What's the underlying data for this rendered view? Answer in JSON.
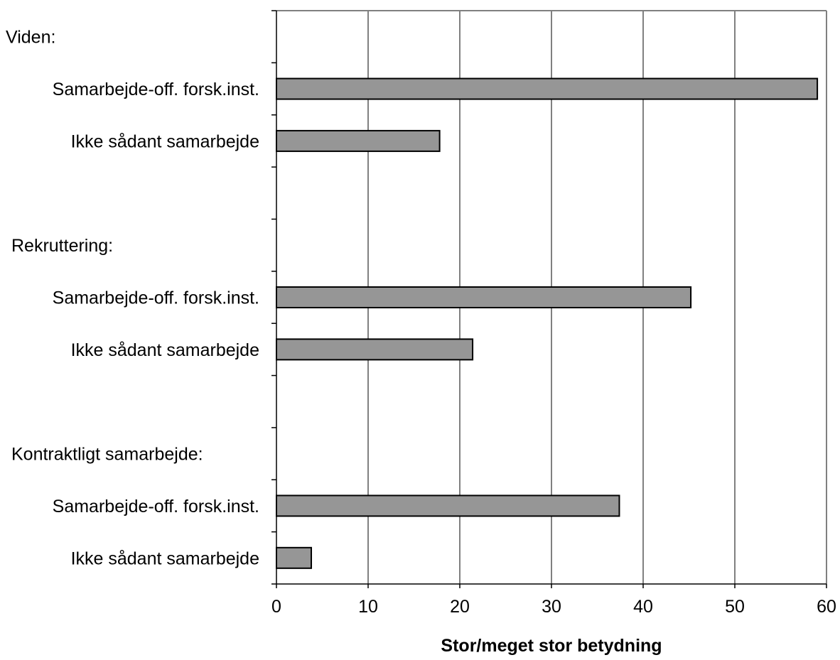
{
  "chart_data": {
    "type": "bar",
    "orientation": "horizontal",
    "title": "",
    "xlabel": "Stor/meget stor betydning",
    "ylabel": "",
    "xlim": [
      0,
      60
    ],
    "xticks": [
      "0",
      "10",
      "20",
      "30",
      "40",
      "50",
      "60"
    ],
    "grid": true,
    "bar_color": "#969696",
    "grid_color": "#808080",
    "rows": [
      {
        "label": "Viden:",
        "kind": "header"
      },
      {
        "label": "Samarbejde-off. forsk.inst.",
        "kind": "bar",
        "value": 59
      },
      {
        "label": "Ikke sådant samarbejde",
        "kind": "bar",
        "value": 17.8
      },
      {
        "label": "",
        "kind": "spacer"
      },
      {
        "label": "Rekruttering:",
        "kind": "header"
      },
      {
        "label": "Samarbejde-off. forsk.inst.",
        "kind": "bar",
        "value": 45.2
      },
      {
        "label": "Ikke sådant samarbejde",
        "kind": "bar",
        "value": 21.4
      },
      {
        "label": "",
        "kind": "spacer"
      },
      {
        "label": "Kontraktligt samarbejde:",
        "kind": "header"
      },
      {
        "label": "Samarbejde-off. forsk.inst.",
        "kind": "bar",
        "value": 37.4
      },
      {
        "label": "Ikke sådant samarbejde",
        "kind": "bar",
        "value": 3.8
      }
    ]
  }
}
